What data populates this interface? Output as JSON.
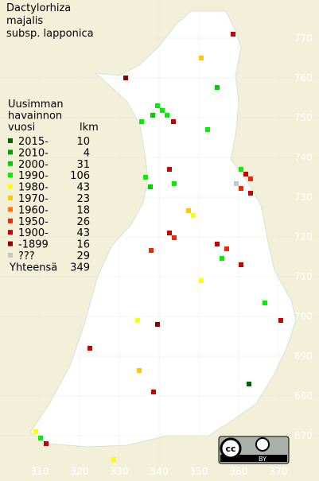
{
  "title": [
    "Dactylorhiza",
    "majalis",
    "subsp. lapponica"
  ],
  "legend": {
    "header": [
      "Uusimman",
      "havainnon",
      "vuosi"
    ],
    "count_header": "lkm",
    "items": [
      {
        "label": "2015-",
        "count": 10,
        "color": "#006400"
      },
      {
        "label": "2010-",
        "count": 4,
        "color": "#00a000"
      },
      {
        "label": "2000-",
        "count": 31,
        "color": "#00d000"
      },
      {
        "label": "1990-",
        "count": 106,
        "color": "#00f000"
      },
      {
        "label": "1980-",
        "count": 43,
        "color": "#ffff00"
      },
      {
        "label": "1970-",
        "count": 23,
        "color": "#ffc800"
      },
      {
        "label": "1960-",
        "count": 18,
        "color": "#ff7800"
      },
      {
        "label": "1950-",
        "count": 26,
        "color": "#ee2800"
      },
      {
        "label": "1900-",
        "count": 43,
        "color": "#c80000"
      },
      {
        "label": "-1899",
        "count": 16,
        "color": "#8c0000"
      },
      {
        "label": "???",
        "count": 29,
        "color": "#c8c8c8"
      }
    ],
    "total": {
      "label": "Yhteensä",
      "count": 349
    }
  },
  "grid": {
    "north": [
      770,
      760,
      750,
      740,
      730,
      720,
      710,
      700,
      690,
      680,
      670
    ],
    "east": [
      310,
      320,
      330,
      340,
      350,
      360,
      370
    ]
  },
  "badge": {
    "cc": "cc",
    "by": "BY"
  }
}
